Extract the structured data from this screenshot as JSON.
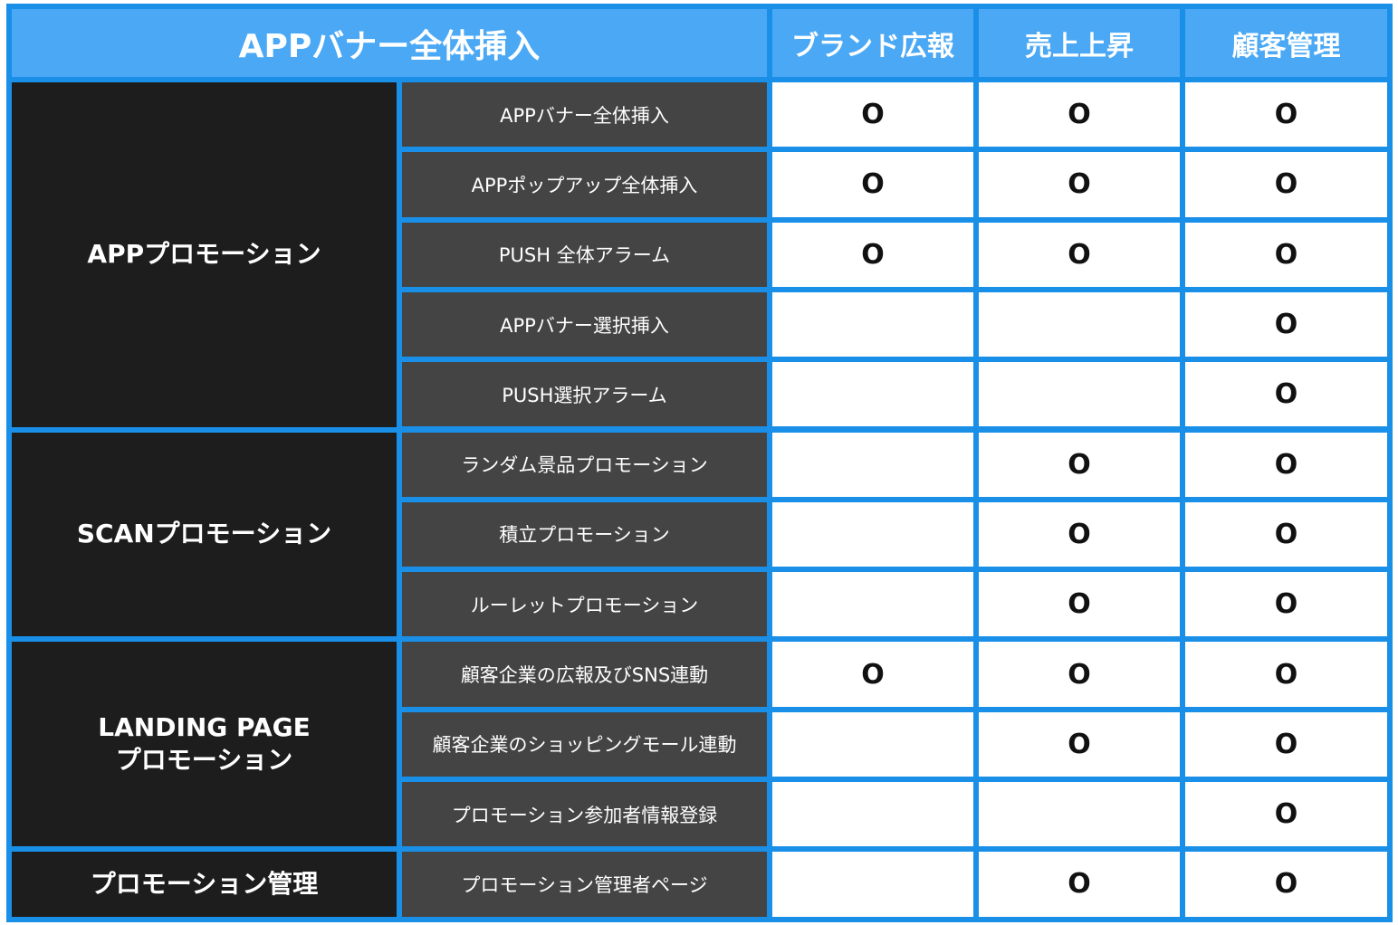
{
  "header": {
    "title": "APPバナー全体挿入",
    "columns": [
      "ブランド広報",
      "売上上昇",
      "顧客管理"
    ]
  },
  "mark": "O",
  "colors": {
    "header": "#4aa8f5",
    "border": "#1a8fe8",
    "category": "#1d1d1d",
    "subcategory": "#444444"
  },
  "groups": [
    {
      "name": "APPプロモーション",
      "rows": [
        {
          "label": "APPバナー全体挿入",
          "marks": [
            true,
            true,
            true
          ]
        },
        {
          "label": "APPポップアップ全体挿入",
          "marks": [
            true,
            true,
            true
          ]
        },
        {
          "label": "PUSH 全体アラーム",
          "marks": [
            true,
            true,
            true
          ]
        },
        {
          "label": "APPバナー選択挿入",
          "marks": [
            false,
            false,
            true
          ]
        },
        {
          "label": "PUSH選択アラーム",
          "marks": [
            false,
            false,
            true
          ]
        }
      ]
    },
    {
      "name": "SCANプロモーション",
      "rows": [
        {
          "label": "ランダム景品プロモーション",
          "marks": [
            false,
            true,
            true
          ]
        },
        {
          "label": "積立プロモーション",
          "marks": [
            false,
            true,
            true
          ]
        },
        {
          "label": "ルーレットプロモーション",
          "marks": [
            false,
            true,
            true
          ]
        }
      ]
    },
    {
      "name": "LANDING PAGE\nプロモーション",
      "rows": [
        {
          "label": "顧客企業の広報及びSNS連動",
          "marks": [
            true,
            true,
            true
          ]
        },
        {
          "label": "顧客企業のショッピングモール連動",
          "marks": [
            false,
            true,
            true
          ]
        },
        {
          "label": "プロモーション参加者情報登録",
          "marks": [
            false,
            false,
            true
          ]
        }
      ]
    },
    {
      "name": "プロモーション管理",
      "rows": [
        {
          "label": "プロモーション管理者ページ",
          "marks": [
            false,
            true,
            true
          ]
        }
      ]
    }
  ]
}
